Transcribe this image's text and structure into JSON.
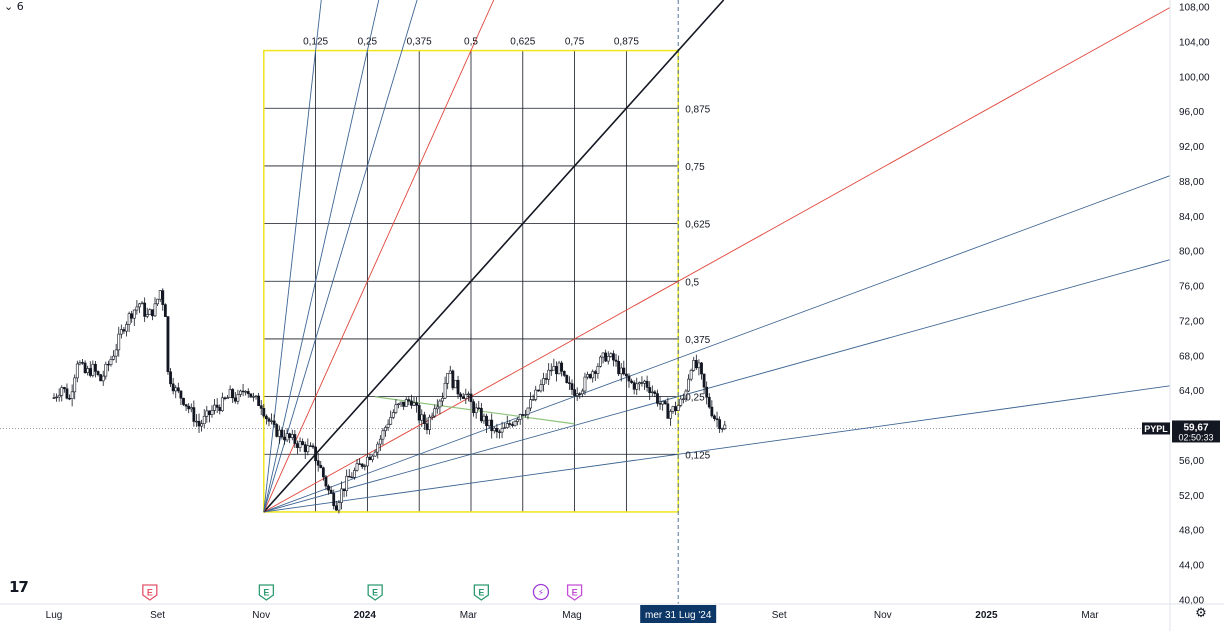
{
  "toolbar": {
    "collapse_glyph": "⌄",
    "count": "6"
  },
  "logo": {
    "text": "17"
  },
  "settings": {
    "icon": "gear-icon",
    "glyph": "⚙"
  },
  "colors": {
    "frame": "#f2e41c",
    "grid": "#131722",
    "fan_blue": "#3d6593",
    "fan_red": "#e0453a",
    "fan_black": "#131722",
    "trend_green": "#8dc37a",
    "candle_up": "#131722",
    "candle_down": "#131722",
    "price_badge": "#131722",
    "time_badge": "#0c3766",
    "earnings_red": "#e4556a",
    "earnings_green": "#2e9a72",
    "earnings_purple": "#c44fd6",
    "dividend_purple": "#9e3bd8"
  },
  "chart_data": {
    "type": "candlestick",
    "symbol": "PYPL",
    "last_price": "59,67",
    "countdown": "02:50:33",
    "crosshair_time_label": "mer 31 Lug '24",
    "y_axis": {
      "ylim": [
        40,
        108
      ],
      "ticks": [
        "108,00",
        "104,00",
        "100,00",
        "96,00",
        "92,00",
        "88,00",
        "84,00",
        "80,00",
        "76,00",
        "72,00",
        "68,00",
        "64,00",
        "60,00",
        "56,00",
        "52,00",
        "48,00",
        "44,00",
        "40,00"
      ],
      "tick_values": [
        108,
        104,
        100,
        96,
        92,
        88,
        84,
        80,
        76,
        72,
        68,
        64,
        60,
        56,
        52,
        48,
        44,
        40
      ]
    },
    "x_axis": {
      "labels": [
        {
          "text": "Lug",
          "bold": false
        },
        {
          "text": "Set",
          "bold": false
        },
        {
          "text": "Nov",
          "bold": false
        },
        {
          "text": "2024",
          "bold": true
        },
        {
          "text": "Mar",
          "bold": false
        },
        {
          "text": "Mag",
          "bold": false
        },
        {
          "text": "Lug",
          "bold": false
        },
        {
          "text": "Set",
          "bold": false
        },
        {
          "text": "Nov",
          "bold": false
        },
        {
          "text": "2025",
          "bold": true
        },
        {
          "text": "Mar",
          "bold": false
        }
      ],
      "months_index": [
        0,
        2,
        4,
        6,
        8,
        10,
        12,
        14,
        16,
        18,
        20
      ]
    },
    "gann_box": {
      "time_levels": [
        "0,125",
        "0,25",
        "0,375",
        "0,5",
        "0,625",
        "0,75",
        "0,875"
      ],
      "price_levels": [
        "0,875",
        "0,75",
        "0,625",
        "0,5",
        "0,375",
        "0,25",
        "0,125"
      ],
      "origin": {
        "month": 4.05,
        "price": 50.1
      },
      "end": {
        "month": 12.05,
        "price": 103.0
      }
    },
    "fan_lines": [
      {
        "ratio": "1/8",
        "color": "blue"
      },
      {
        "ratio": "1/4",
        "color": "blue"
      },
      {
        "ratio": "1/3",
        "color": "blue"
      },
      {
        "ratio": "1/2",
        "color": "red"
      },
      {
        "ratio": "1/1",
        "color": "black"
      },
      {
        "ratio": "2/1",
        "color": "red"
      },
      {
        "ratio": "3/1",
        "color": "blue"
      },
      {
        "ratio": "4/1",
        "color": "blue"
      },
      {
        "ratio": "8/1",
        "color": "blue"
      }
    ],
    "trendline": {
      "start": {
        "month": 6.2,
        "price": 63.3
      },
      "end": {
        "month": 10.05,
        "price": 60.2
      }
    },
    "price_path": [
      [
        0.0,
        63.2
      ],
      [
        0.15,
        64.5
      ],
      [
        0.3,
        63.0
      ],
      [
        0.45,
        67.5
      ],
      [
        0.6,
        66.0
      ],
      [
        0.75,
        66.5
      ],
      [
        0.9,
        65.2
      ],
      [
        1.05,
        67.0
      ],
      [
        1.2,
        69.0
      ],
      [
        1.35,
        71.5
      ],
      [
        1.5,
        73.0
      ],
      [
        1.65,
        74.0
      ],
      [
        1.8,
        72.5
      ],
      [
        1.95,
        73.5
      ],
      [
        2.05,
        75.5
      ],
      [
        2.15,
        73.0
      ],
      [
        2.2,
        66.0
      ],
      [
        2.35,
        64.0
      ],
      [
        2.5,
        63.0
      ],
      [
        2.65,
        61.5
      ],
      [
        2.8,
        60.0
      ],
      [
        2.95,
        61.0
      ],
      [
        3.1,
        62.0
      ],
      [
        3.25,
        62.5
      ],
      [
        3.4,
        63.5
      ],
      [
        3.55,
        63.0
      ],
      [
        3.7,
        64.5
      ],
      [
        3.85,
        63.0
      ],
      [
        4.0,
        62.5
      ],
      [
        4.1,
        61.0
      ],
      [
        4.25,
        59.5
      ],
      [
        4.4,
        59.0
      ],
      [
        4.55,
        58.5
      ],
      [
        4.7,
        58.0
      ],
      [
        4.85,
        57.5
      ],
      [
        5.0,
        57.0
      ],
      [
        5.15,
        55.0
      ],
      [
        5.3,
        52.5
      ],
      [
        5.45,
        51.0
      ],
      [
        5.55,
        52.5
      ],
      [
        5.7,
        54.0
      ],
      [
        5.85,
        55.0
      ],
      [
        6.0,
        56.0
      ],
      [
        6.15,
        57.0
      ],
      [
        6.3,
        58.5
      ],
      [
        6.45,
        60.5
      ],
      [
        6.6,
        62.0
      ],
      [
        6.75,
        62.5
      ],
      [
        6.9,
        63.0
      ],
      [
        7.05,
        61.0
      ],
      [
        7.2,
        60.0
      ],
      [
        7.35,
        62.5
      ],
      [
        7.5,
        63.5
      ],
      [
        7.6,
        66.5
      ],
      [
        7.7,
        65.0
      ],
      [
        7.8,
        64.0
      ],
      [
        7.95,
        63.5
      ],
      [
        8.1,
        62.0
      ],
      [
        8.25,
        61.0
      ],
      [
        8.4,
        60.0
      ],
      [
        8.55,
        59.0
      ],
      [
        8.7,
        59.5
      ],
      [
        8.85,
        60.5
      ],
      [
        9.0,
        61.5
      ],
      [
        9.15,
        62.0
      ],
      [
        9.3,
        63.5
      ],
      [
        9.45,
        65.0
      ],
      [
        9.6,
        66.5
      ],
      [
        9.75,
        66.5
      ],
      [
        9.9,
        64.5
      ],
      [
        10.05,
        64.0
      ],
      [
        10.2,
        64.5
      ],
      [
        10.35,
        66.0
      ],
      [
        10.5,
        67.0
      ],
      [
        10.65,
        68.0
      ],
      [
        10.8,
        67.5
      ],
      [
        10.95,
        66.0
      ],
      [
        11.1,
        65.0
      ],
      [
        11.25,
        64.5
      ],
      [
        11.4,
        65.0
      ],
      [
        11.55,
        64.0
      ],
      [
        11.7,
        62.5
      ],
      [
        11.85,
        61.5
      ],
      [
        12.0,
        62.0
      ],
      [
        12.15,
        63.0
      ],
      [
        12.3,
        67.0
      ],
      [
        12.45,
        66.5
      ],
      [
        12.6,
        63.0
      ],
      [
        12.75,
        61.0
      ],
      [
        12.9,
        60.0
      ],
      [
        13.0,
        59.7
      ]
    ],
    "event_badges": [
      {
        "letter": "E",
        "kind": "earnings_red",
        "month": 1.85
      },
      {
        "letter": "E",
        "kind": "earnings_green",
        "month": 4.1
      },
      {
        "letter": "E",
        "kind": "earnings_green",
        "month": 6.2
      },
      {
        "letter": "E",
        "kind": "earnings_green",
        "month": 8.25
      },
      {
        "letter": "⚡",
        "kind": "dividend_purple",
        "month": 9.4
      },
      {
        "letter": "E",
        "kind": "earnings_purple",
        "month": 10.05
      }
    ]
  }
}
